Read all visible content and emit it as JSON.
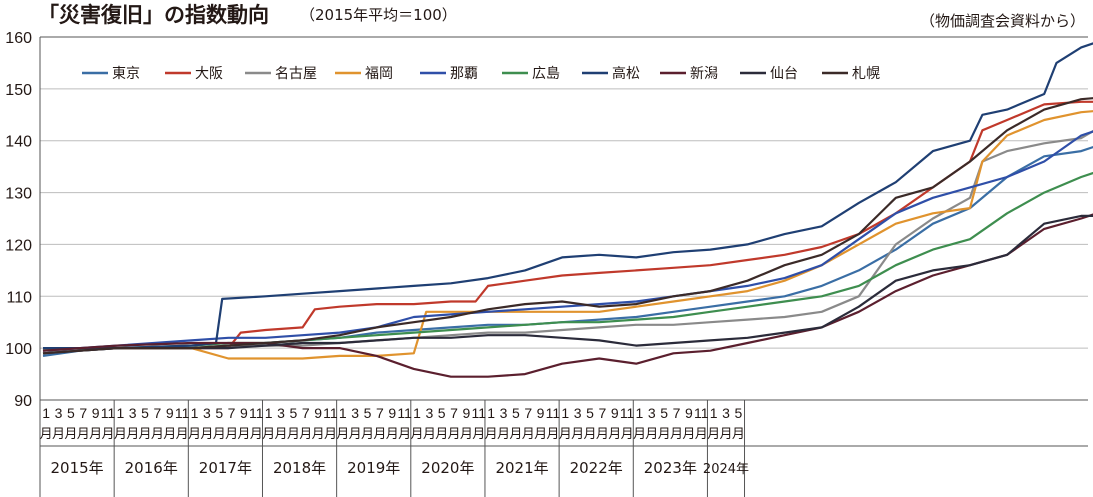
{
  "chart_data": {
    "type": "line",
    "title": "「災害復旧」の指数動向",
    "subtitle": "（2015年平均＝100）",
    "source": "（物価調査会資料から）",
    "xlabel": "",
    "ylabel": "",
    "ylim": [
      90,
      160
    ],
    "yticks": [
      90,
      100,
      110,
      120,
      130,
      140,
      150,
      160
    ],
    "grid": true,
    "legend_position": "top-left",
    "month_labels": [
      "1",
      "3",
      "5",
      "7",
      "9",
      "11"
    ],
    "month_unit": "月",
    "years": [
      "2015年",
      "2016年",
      "2017年",
      "2018年",
      "2019年",
      "2020年",
      "2021年",
      "2022年",
      "2023年",
      "2024年"
    ],
    "series": [
      {
        "name": "東京",
        "color": "#3a6ea5",
        "points": [
          [
            0,
            98.5
          ],
          [
            6,
            99.5
          ],
          [
            12,
            100
          ],
          [
            24,
            100
          ],
          [
            30,
            100.5
          ],
          [
            36,
            101
          ],
          [
            48,
            102
          ],
          [
            54,
            103
          ],
          [
            60,
            103.5
          ],
          [
            66,
            104
          ],
          [
            72,
            104.5
          ],
          [
            78,
            104.5
          ],
          [
            84,
            105
          ],
          [
            90,
            105.5
          ],
          [
            96,
            106
          ],
          [
            102,
            107
          ],
          [
            108,
            108
          ],
          [
            114,
            109
          ],
          [
            120,
            110
          ],
          [
            126,
            112
          ],
          [
            132,
            115
          ],
          [
            138,
            119
          ],
          [
            144,
            124
          ],
          [
            150,
            127
          ],
          [
            156,
            133
          ],
          [
            162,
            137
          ],
          [
            168,
            138
          ],
          [
            173,
            140
          ]
        ]
      },
      {
        "name": "大阪",
        "color": "#c0392b",
        "points": [
          [
            0,
            99.5
          ],
          [
            6,
            100
          ],
          [
            12,
            100
          ],
          [
            24,
            100
          ],
          [
            30,
            100
          ],
          [
            32,
            103
          ],
          [
            36,
            103.5
          ],
          [
            42,
            104
          ],
          [
            44,
            107.5
          ],
          [
            48,
            108
          ],
          [
            54,
            108.5
          ],
          [
            60,
            108.5
          ],
          [
            66,
            109
          ],
          [
            70,
            109
          ],
          [
            72,
            112
          ],
          [
            78,
            113
          ],
          [
            84,
            114
          ],
          [
            90,
            114.5
          ],
          [
            96,
            115
          ],
          [
            102,
            115.5
          ],
          [
            108,
            116
          ],
          [
            114,
            117
          ],
          [
            120,
            118
          ],
          [
            126,
            119.5
          ],
          [
            132,
            122
          ],
          [
            138,
            126
          ],
          [
            144,
            131
          ],
          [
            150,
            136
          ],
          [
            152,
            142
          ],
          [
            156,
            144
          ],
          [
            162,
            147
          ],
          [
            168,
            147.5
          ],
          [
            173,
            147.5
          ]
        ]
      },
      {
        "name": "名古屋",
        "color": "#8a8a8a",
        "points": [
          [
            0,
            99.5
          ],
          [
            6,
            99.5
          ],
          [
            12,
            100
          ],
          [
            24,
            100
          ],
          [
            30,
            100.5
          ],
          [
            36,
            100.5
          ],
          [
            42,
            100.5
          ],
          [
            48,
            101
          ],
          [
            54,
            101.5
          ],
          [
            60,
            102
          ],
          [
            66,
            102.5
          ],
          [
            72,
            103
          ],
          [
            78,
            103
          ],
          [
            84,
            103.5
          ],
          [
            90,
            104
          ],
          [
            96,
            104.5
          ],
          [
            102,
            104.5
          ],
          [
            108,
            105
          ],
          [
            114,
            105.5
          ],
          [
            120,
            106
          ],
          [
            126,
            107
          ],
          [
            132,
            110
          ],
          [
            138,
            120
          ],
          [
            144,
            125
          ],
          [
            150,
            129
          ],
          [
            152,
            136
          ],
          [
            156,
            138
          ],
          [
            162,
            139.5
          ],
          [
            168,
            140.5
          ],
          [
            173,
            144
          ]
        ]
      },
      {
        "name": "福岡",
        "color": "#e0932e",
        "points": [
          [
            0,
            100
          ],
          [
            6,
            100
          ],
          [
            12,
            100
          ],
          [
            24,
            100
          ],
          [
            30,
            98
          ],
          [
            36,
            98
          ],
          [
            42,
            98
          ],
          [
            48,
            98.5
          ],
          [
            54,
            98.5
          ],
          [
            60,
            99
          ],
          [
            62,
            107
          ],
          [
            66,
            107
          ],
          [
            72,
            107
          ],
          [
            78,
            107
          ],
          [
            84,
            107
          ],
          [
            90,
            107
          ],
          [
            96,
            108
          ],
          [
            102,
            109
          ],
          [
            108,
            110
          ],
          [
            114,
            111
          ],
          [
            120,
            113
          ],
          [
            126,
            116
          ],
          [
            132,
            120
          ],
          [
            138,
            124
          ],
          [
            144,
            126
          ],
          [
            150,
            127
          ],
          [
            152,
            136
          ],
          [
            156,
            141
          ],
          [
            162,
            144
          ],
          [
            168,
            145.5
          ],
          [
            173,
            146
          ]
        ]
      },
      {
        "name": "那覇",
        "color": "#2f4fa8",
        "points": [
          [
            0,
            99.5
          ],
          [
            6,
            100
          ],
          [
            12,
            100.5
          ],
          [
            24,
            101.5
          ],
          [
            30,
            102
          ],
          [
            36,
            102
          ],
          [
            42,
            102.5
          ],
          [
            48,
            103
          ],
          [
            54,
            104
          ],
          [
            60,
            106
          ],
          [
            66,
            106.5
          ],
          [
            72,
            107
          ],
          [
            78,
            107.5
          ],
          [
            84,
            108
          ],
          [
            90,
            108.5
          ],
          [
            96,
            109
          ],
          [
            102,
            110
          ],
          [
            108,
            111
          ],
          [
            114,
            112
          ],
          [
            120,
            113.5
          ],
          [
            126,
            116
          ],
          [
            132,
            121
          ],
          [
            138,
            126
          ],
          [
            144,
            129
          ],
          [
            150,
            131
          ],
          [
            156,
            133
          ],
          [
            162,
            136
          ],
          [
            168,
            141
          ],
          [
            173,
            143
          ]
        ]
      },
      {
        "name": "広島",
        "color": "#3e8e4f",
        "points": [
          [
            0,
            100
          ],
          [
            6,
            100
          ],
          [
            12,
            100
          ],
          [
            24,
            100.5
          ],
          [
            30,
            101
          ],
          [
            36,
            101
          ],
          [
            42,
            101.5
          ],
          [
            48,
            102
          ],
          [
            54,
            102.5
          ],
          [
            60,
            103
          ],
          [
            66,
            103.5
          ],
          [
            72,
            104
          ],
          [
            78,
            104.5
          ],
          [
            84,
            105
          ],
          [
            90,
            105
          ],
          [
            96,
            105.5
          ],
          [
            102,
            106
          ],
          [
            108,
            107
          ],
          [
            114,
            108
          ],
          [
            120,
            109
          ],
          [
            126,
            110
          ],
          [
            132,
            112
          ],
          [
            138,
            116
          ],
          [
            144,
            119
          ],
          [
            150,
            121
          ],
          [
            156,
            126
          ],
          [
            162,
            130
          ],
          [
            168,
            133
          ],
          [
            173,
            135
          ]
        ]
      },
      {
        "name": "高松",
        "color": "#1f3f73",
        "points": [
          [
            0,
            100
          ],
          [
            6,
            100
          ],
          [
            12,
            100
          ],
          [
            24,
            100.5
          ],
          [
            28,
            101
          ],
          [
            29,
            109.5
          ],
          [
            36,
            110
          ],
          [
            42,
            110.5
          ],
          [
            48,
            111
          ],
          [
            54,
            111.5
          ],
          [
            60,
            112
          ],
          [
            66,
            112.5
          ],
          [
            72,
            113.5
          ],
          [
            78,
            115
          ],
          [
            84,
            117.5
          ],
          [
            90,
            118
          ],
          [
            96,
            117.5
          ],
          [
            102,
            118.5
          ],
          [
            108,
            119
          ],
          [
            114,
            120
          ],
          [
            120,
            122
          ],
          [
            126,
            123.5
          ],
          [
            132,
            128
          ],
          [
            138,
            132
          ],
          [
            144,
            138
          ],
          [
            150,
            140
          ],
          [
            152,
            145
          ],
          [
            156,
            146
          ],
          [
            162,
            149
          ],
          [
            164,
            155
          ],
          [
            168,
            158
          ],
          [
            173,
            160
          ]
        ]
      },
      {
        "name": "新潟",
        "color": "#5b1f2e",
        "points": [
          [
            0,
            99.5
          ],
          [
            6,
            100
          ],
          [
            12,
            100.5
          ],
          [
            24,
            101
          ],
          [
            30,
            101
          ],
          [
            36,
            101
          ],
          [
            42,
            100
          ],
          [
            48,
            100
          ],
          [
            54,
            98.5
          ],
          [
            60,
            96
          ],
          [
            66,
            94.5
          ],
          [
            72,
            94.5
          ],
          [
            78,
            95
          ],
          [
            84,
            97
          ],
          [
            90,
            98
          ],
          [
            96,
            97
          ],
          [
            102,
            99
          ],
          [
            108,
            99.5
          ],
          [
            114,
            101
          ],
          [
            120,
            102.5
          ],
          [
            126,
            104
          ],
          [
            132,
            107
          ],
          [
            138,
            111
          ],
          [
            144,
            114
          ],
          [
            150,
            116
          ],
          [
            156,
            118
          ],
          [
            162,
            123
          ],
          [
            168,
            125
          ],
          [
            173,
            127
          ]
        ]
      },
      {
        "name": "仙台",
        "color": "#2b2b3a",
        "points": [
          [
            0,
            99
          ],
          [
            6,
            99.5
          ],
          [
            12,
            100
          ],
          [
            24,
            100
          ],
          [
            30,
            100
          ],
          [
            36,
            100.5
          ],
          [
            42,
            101
          ],
          [
            48,
            101
          ],
          [
            54,
            101.5
          ],
          [
            60,
            102
          ],
          [
            66,
            102
          ],
          [
            72,
            102.5
          ],
          [
            78,
            102.5
          ],
          [
            84,
            102
          ],
          [
            90,
            101.5
          ],
          [
            96,
            100.5
          ],
          [
            102,
            101
          ],
          [
            108,
            101.5
          ],
          [
            114,
            102
          ],
          [
            120,
            103
          ],
          [
            126,
            104
          ],
          [
            132,
            108
          ],
          [
            138,
            113
          ],
          [
            144,
            115
          ],
          [
            150,
            116
          ],
          [
            156,
            118
          ],
          [
            162,
            124
          ],
          [
            168,
            125.5
          ],
          [
            173,
            125.5
          ]
        ]
      },
      {
        "name": "札幌",
        "color": "#3b2a28",
        "points": [
          [
            0,
            99
          ],
          [
            6,
            99.5
          ],
          [
            12,
            100
          ],
          [
            24,
            100
          ],
          [
            30,
            100.5
          ],
          [
            36,
            101
          ],
          [
            42,
            101.5
          ],
          [
            48,
            102.5
          ],
          [
            54,
            104
          ],
          [
            60,
            105
          ],
          [
            66,
            106
          ],
          [
            72,
            107.5
          ],
          [
            78,
            108.5
          ],
          [
            84,
            109
          ],
          [
            90,
            108
          ],
          [
            96,
            108.5
          ],
          [
            102,
            110
          ],
          [
            108,
            111
          ],
          [
            114,
            113
          ],
          [
            120,
            116
          ],
          [
            126,
            118
          ],
          [
            132,
            122
          ],
          [
            138,
            129
          ],
          [
            144,
            131
          ],
          [
            150,
            136
          ],
          [
            156,
            142
          ],
          [
            162,
            146
          ],
          [
            168,
            148
          ],
          [
            173,
            148.5
          ]
        ]
      }
    ]
  }
}
